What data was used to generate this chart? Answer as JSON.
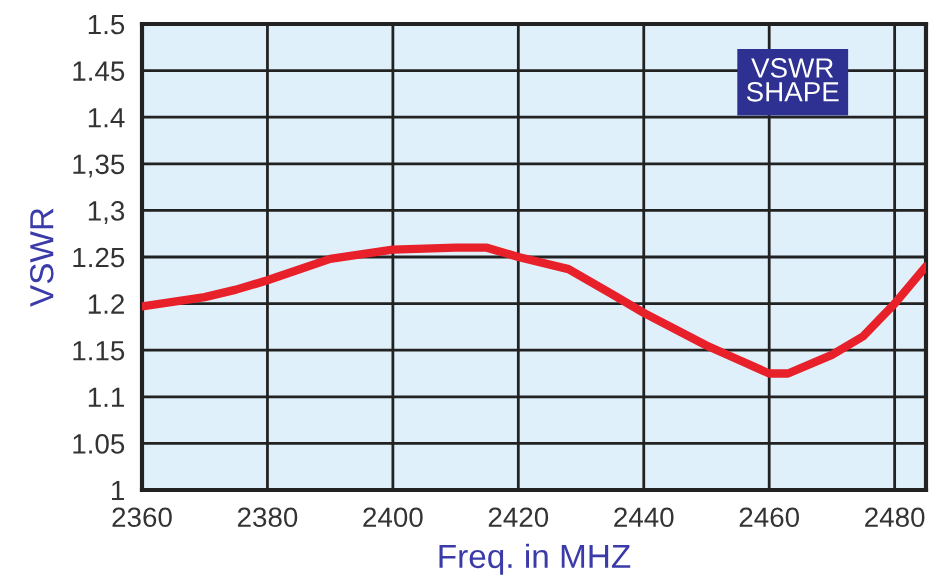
{
  "chart_data": {
    "type": "line",
    "xlabel": "Freq. in MHZ",
    "ylabel": "VSWR",
    "annotations": [
      "VSWR\nSHAPE"
    ],
    "x": [
      2360,
      2370,
      2375,
      2380,
      2390,
      2400,
      2410,
      2415,
      2420,
      2428,
      2435,
      2440,
      2450,
      2455,
      2460,
      2463,
      2470,
      2475,
      2480,
      2485
    ],
    "series": [
      {
        "color": "#e8202a",
        "values": [
          1.197,
          1.207,
          1.215,
          1.225,
          1.248,
          1.258,
          1.26,
          1.26,
          1.25,
          1.237,
          1.21,
          1.19,
          1.155,
          1.14,
          1.125,
          1.125,
          1.145,
          1.165,
          1.2,
          1.24
        ]
      }
    ],
    "xlim": [
      2360,
      2485
    ],
    "xticks": [
      2360,
      2380,
      2400,
      2420,
      2440,
      2460,
      2480
    ],
    "ylim": [
      1,
      1.5
    ],
    "yticks": [
      1,
      1.05,
      1.1,
      1.15,
      1.2,
      1.25,
      {
        "value": 1.3,
        "label": "1,3"
      },
      {
        "value": 1.35,
        "label": "1,35"
      },
      1.4,
      1.45,
      1.5
    ],
    "grid": true,
    "marker": "none",
    "line_style": "solid"
  }
}
